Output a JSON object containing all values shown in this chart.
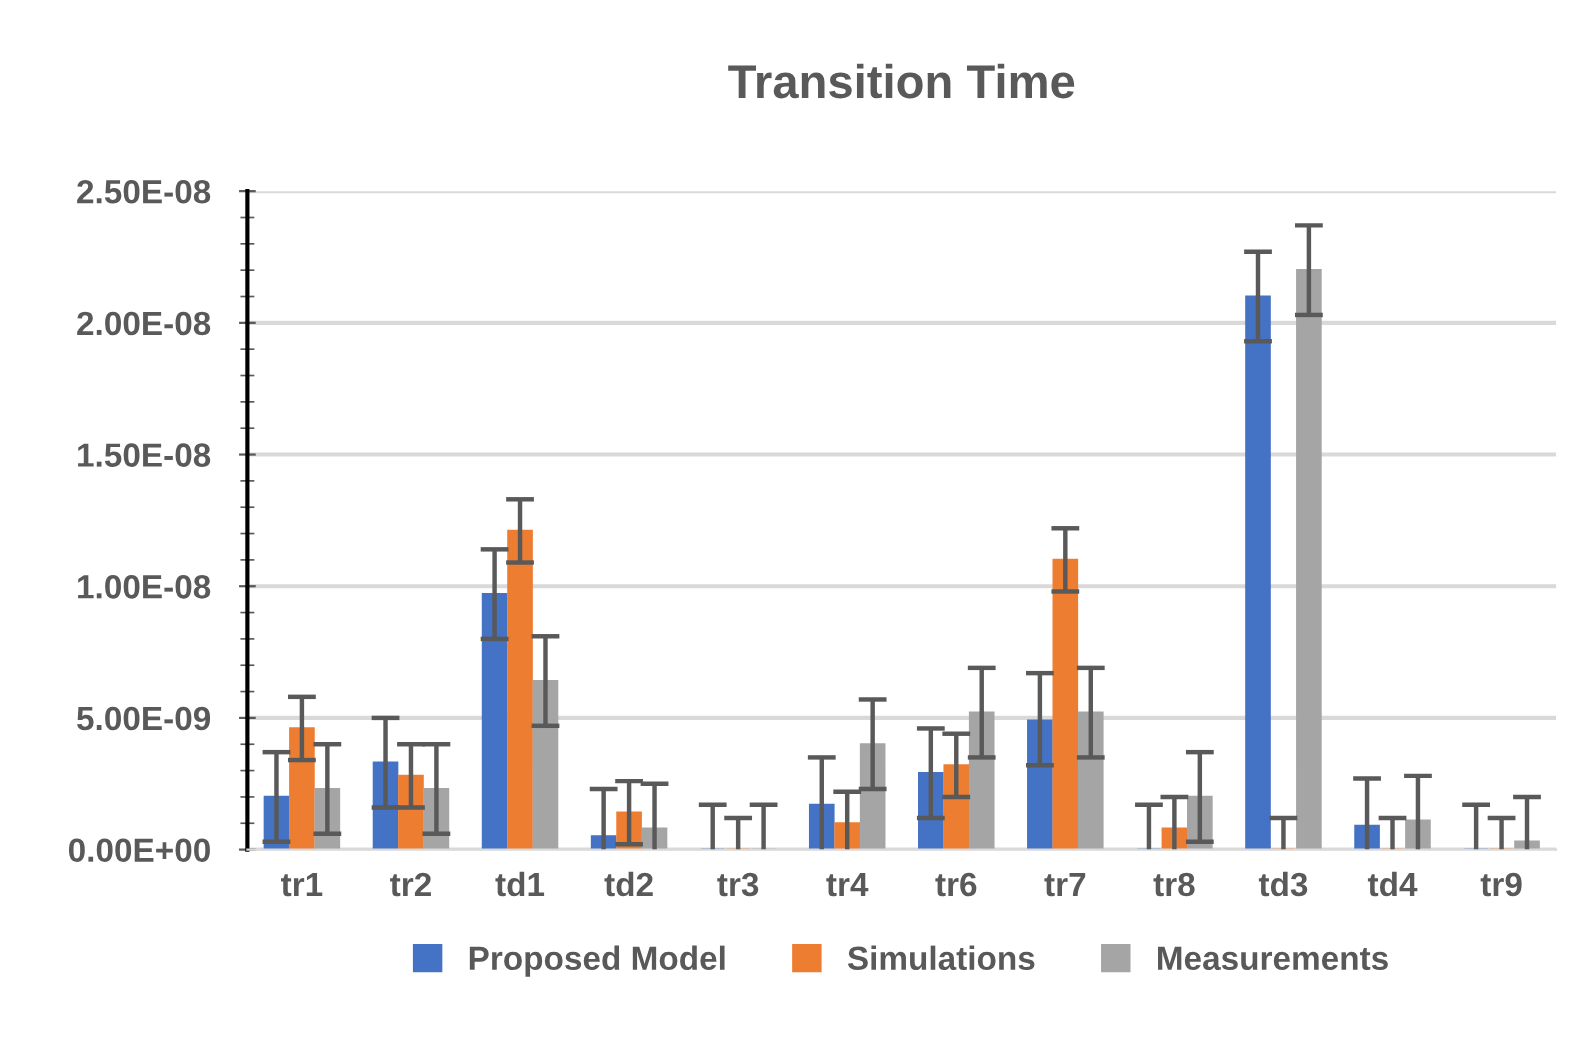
{
  "chart_data": {
    "type": "bar",
    "title": "Transition Time",
    "categories": [
      "tr1",
      "tr2",
      "td1",
      "td2",
      "tr3",
      "tr4",
      "tr6",
      "tr7",
      "tr8",
      "td3",
      "td4",
      "tr9"
    ],
    "series": [
      {
        "name": "Proposed Model",
        "color": "#4472c4",
        "values": [
          2e-09,
          3.3e-09,
          9.7e-09,
          5e-10,
          0,
          1.7e-09,
          2.9e-09,
          4.9e-09,
          0,
          2.1e-08,
          9e-10,
          0
        ],
        "errors": [
          [
            3e-10,
            3.7e-09
          ],
          [
            1.6e-09,
            5e-09
          ],
          [
            8e-09,
            1.14e-08
          ],
          [
            0,
            2.3e-09
          ],
          [
            0,
            1.7e-09
          ],
          [
            0,
            3.5e-09
          ],
          [
            1.2e-09,
            4.6e-09
          ],
          [
            3.2e-09,
            6.7e-09
          ],
          [
            0,
            1.7e-09
          ],
          [
            1.93e-08,
            2.27e-08
          ],
          [
            0,
            2.7e-09
          ],
          [
            0,
            1.7e-09
          ]
        ]
      },
      {
        "name": "Simulations",
        "color": "#ed7d31",
        "values": [
          4.6e-09,
          2.8e-09,
          1.21e-08,
          1.4e-09,
          0,
          1e-09,
          3.2e-09,
          1.1e-08,
          8e-10,
          0,
          0,
          0
        ],
        "errors": [
          [
            3.4e-09,
            5.8e-09
          ],
          [
            1.6e-09,
            4e-09
          ],
          [
            1.09e-08,
            1.33e-08
          ],
          [
            2e-10,
            2.6e-09
          ],
          [
            0,
            1.2e-09
          ],
          [
            0,
            2.2e-09
          ],
          [
            2e-09,
            4.4e-09
          ],
          [
            9.8e-09,
            1.22e-08
          ],
          [
            0,
            2e-09
          ],
          [
            0,
            1.2e-09
          ],
          [
            0,
            1.2e-09
          ],
          [
            0,
            1.2e-09
          ]
        ]
      },
      {
        "name": "Measurements",
        "color": "#a5a5a5",
        "values": [
          2.3e-09,
          2.3e-09,
          6.4e-09,
          8e-10,
          0,
          4e-09,
          5.2e-09,
          5.2e-09,
          2e-09,
          2.2e-08,
          1.1e-09,
          3e-10
        ],
        "errors": [
          [
            6e-10,
            4e-09
          ],
          [
            6e-10,
            4e-09
          ],
          [
            4.7e-09,
            8.1e-09
          ],
          [
            0,
            2.5e-09
          ],
          [
            0,
            1.7e-09
          ],
          [
            2.3e-09,
            5.7e-09
          ],
          [
            3.5e-09,
            6.9e-09
          ],
          [
            3.5e-09,
            6.9e-09
          ],
          [
            3e-10,
            3.7e-09
          ],
          [
            2.03e-08,
            2.37e-08
          ],
          [
            0,
            2.8e-09
          ],
          [
            0,
            2e-09
          ]
        ]
      }
    ],
    "ylim": [
      0,
      2.5e-08
    ],
    "yticks": [
      {
        "value": 0,
        "label": "0.00E+00"
      },
      {
        "value": 5e-09,
        "label": "5.00E-09"
      },
      {
        "value": 1e-08,
        "label": "1.00E-08"
      },
      {
        "value": 1.5e-08,
        "label": "1.50E-08"
      },
      {
        "value": 2e-08,
        "label": "2.00E-08"
      },
      {
        "value": 2.5e-08,
        "label": "2.50E-08"
      }
    ],
    "grid": "y",
    "legend": "bottom"
  }
}
